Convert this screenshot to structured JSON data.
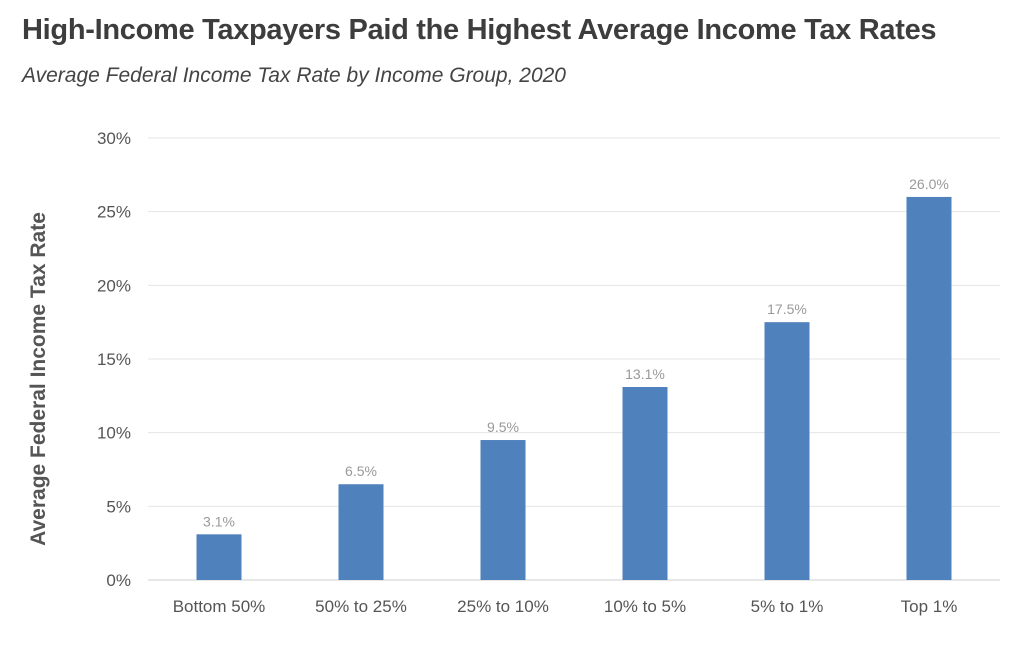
{
  "chart_data": {
    "type": "bar",
    "title": "High-Income Taxpayers Paid the Highest Average Income Tax Rates",
    "subtitle": "Average Federal Income Tax Rate by Income Group, 2020",
    "xlabel": "",
    "ylabel": "Average Federal Income Tax Rate",
    "categories": [
      "Bottom 50%",
      "50% to 25%",
      "25% to 10%",
      "10% to 5%",
      "5% to 1%",
      "Top 1%"
    ],
    "values": [
      3.1,
      6.5,
      9.5,
      13.1,
      17.5,
      26.0
    ],
    "data_labels": [
      "3.1%",
      "6.5%",
      "9.5%",
      "13.1%",
      "17.5%",
      "26.0%"
    ],
    "ylim": [
      0,
      30
    ],
    "yticks": [
      0,
      5,
      10,
      15,
      20,
      25,
      30
    ],
    "ytick_labels": [
      "0%",
      "5%",
      "10%",
      "15%",
      "20%",
      "25%",
      "30%"
    ],
    "grid": true,
    "legend": "none",
    "bar_color": "#4f81bd"
  }
}
